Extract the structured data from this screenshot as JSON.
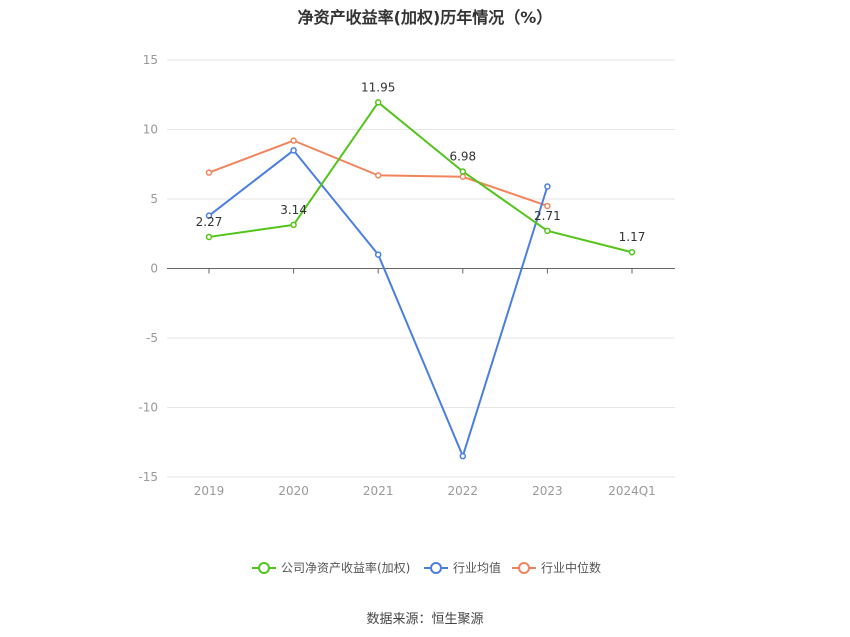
{
  "chart_data": {
    "type": "line",
    "title": "净资产收益率(加权)历年情况（%）",
    "categories": [
      "2019",
      "2020",
      "2021",
      "2022",
      "2023",
      "2024Q1"
    ],
    "ylim": [
      -15,
      15
    ],
    "yticks": [
      15,
      10,
      5,
      0,
      -5,
      -10,
      -15
    ],
    "grid": true,
    "legend_position": "bottom",
    "series": [
      {
        "name": "公司净资产收益率(加权)",
        "color": "#52c41a",
        "values": [
          2.27,
          3.14,
          11.95,
          6.98,
          2.71,
          1.17
        ],
        "labels": [
          "2.27",
          "3.14",
          "11.95",
          "6.98",
          "2.71",
          "1.17"
        ]
      },
      {
        "name": "行业均值",
        "color": "#4a7fdf",
        "values": [
          3.8,
          8.5,
          1.0,
          -13.5,
          5.9,
          null
        ]
      },
      {
        "name": "行业中位数",
        "color": "#f2845c",
        "values": [
          6.9,
          9.2,
          6.7,
          6.6,
          4.5,
          null
        ]
      }
    ]
  },
  "source": "数据来源：恒生聚源"
}
